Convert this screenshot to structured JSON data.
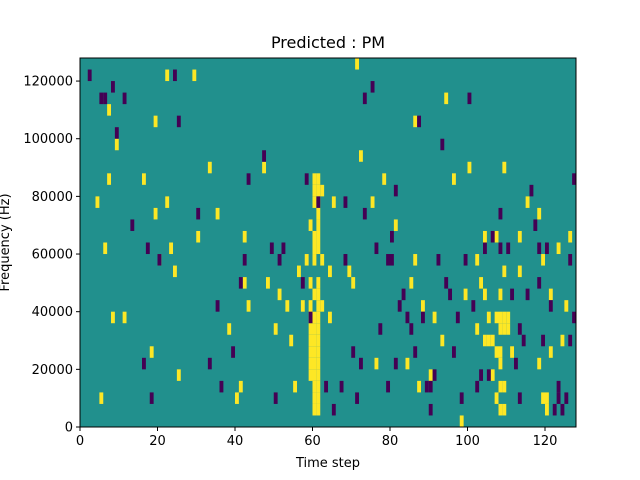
{
  "chart_data": {
    "type": "heatmap",
    "title": "Predicted : PM",
    "xlabel": "Time step",
    "ylabel": "Frequency (Hz)",
    "xlim": [
      0,
      128
    ],
    "ylim": [
      0,
      128000
    ],
    "x_ticks": [
      0,
      20,
      40,
      60,
      80,
      100,
      120
    ],
    "y_ticks": [
      0,
      20000,
      40000,
      60000,
      80000,
      100000,
      120000
    ],
    "x_tick_labels": [
      "0",
      "20",
      "40",
      "60",
      "80",
      "100",
      "120"
    ],
    "y_tick_labels": [
      "0",
      "20000",
      "40000",
      "60000",
      "80000",
      "100000",
      "120000"
    ],
    "grid": false,
    "legend": "none",
    "colors": {
      "background": "#21908d",
      "high": "#fde725",
      "low": "#440154"
    },
    "cell_height_hz": 4000,
    "high_cells": [
      [
        4,
        76000
      ],
      [
        5,
        8000
      ],
      [
        6,
        60000
      ],
      [
        7,
        84000
      ],
      [
        7,
        108000
      ],
      [
        8,
        36000
      ],
      [
        9,
        96000
      ],
      [
        11,
        36000
      ],
      [
        16,
        84000
      ],
      [
        18,
        24000
      ],
      [
        19,
        72000
      ],
      [
        19,
        104000
      ],
      [
        20,
        56000
      ],
      [
        22,
        120000
      ],
      [
        22,
        76000
      ],
      [
        23,
        60000
      ],
      [
        24,
        52000
      ],
      [
        25,
        16000
      ],
      [
        29,
        120000
      ],
      [
        30,
        64000
      ],
      [
        33,
        88000
      ],
      [
        35,
        72000
      ],
      [
        38,
        32000
      ],
      [
        40,
        8000
      ],
      [
        41,
        12000
      ],
      [
        42,
        48000
      ],
      [
        42,
        64000
      ],
      [
        43,
        40000
      ],
      [
        47,
        88000
      ],
      [
        48,
        48000
      ],
      [
        50,
        32000
      ],
      [
        51,
        44000
      ],
      [
        53,
        40000
      ],
      [
        54,
        28000
      ],
      [
        55,
        12000
      ],
      [
        56,
        52000
      ],
      [
        57,
        40000
      ],
      [
        58,
        56000
      ],
      [
        59,
        16000
      ],
      [
        59,
        20000
      ],
      [
        59,
        24000
      ],
      [
        59,
        28000
      ],
      [
        59,
        32000
      ],
      [
        59,
        36000
      ],
      [
        59,
        40000
      ],
      [
        59,
        48000
      ],
      [
        59,
        68000
      ],
      [
        60,
        4000
      ],
      [
        60,
        8000
      ],
      [
        60,
        12000
      ],
      [
        60,
        16000
      ],
      [
        60,
        20000
      ],
      [
        60,
        24000
      ],
      [
        60,
        28000
      ],
      [
        60,
        32000
      ],
      [
        60,
        36000
      ],
      [
        60,
        44000
      ],
      [
        60,
        56000
      ],
      [
        60,
        60000
      ],
      [
        60,
        64000
      ],
      [
        60,
        76000
      ],
      [
        60,
        80000
      ],
      [
        60,
        84000
      ],
      [
        61,
        4000
      ],
      [
        61,
        8000
      ],
      [
        61,
        12000
      ],
      [
        61,
        16000
      ],
      [
        61,
        20000
      ],
      [
        61,
        24000
      ],
      [
        61,
        28000
      ],
      [
        61,
        32000
      ],
      [
        61,
        36000
      ],
      [
        61,
        40000
      ],
      [
        61,
        44000
      ],
      [
        61,
        48000
      ],
      [
        61,
        60000
      ],
      [
        61,
        64000
      ],
      [
        61,
        68000
      ],
      [
        61,
        72000
      ],
      [
        61,
        76000
      ],
      [
        61,
        80000
      ],
      [
        61,
        84000
      ],
      [
        62,
        40000
      ],
      [
        62,
        56000
      ],
      [
        62,
        80000
      ],
      [
        64,
        36000
      ],
      [
        64,
        52000
      ],
      [
        65,
        76000
      ],
      [
        69,
        52000
      ],
      [
        70,
        48000
      ],
      [
        71,
        124000
      ],
      [
        72,
        92000
      ],
      [
        75,
        76000
      ],
      [
        76,
        20000
      ],
      [
        78,
        84000
      ],
      [
        81,
        68000
      ],
      [
        84,
        20000
      ],
      [
        85,
        48000
      ],
      [
        86,
        56000
      ],
      [
        86,
        104000
      ],
      [
        87,
        12000
      ],
      [
        88,
        40000
      ],
      [
        90,
        16000
      ],
      [
        91,
        36000
      ],
      [
        93,
        28000
      ],
      [
        94,
        112000
      ],
      [
        96,
        84000
      ],
      [
        98,
        0
      ],
      [
        99,
        44000
      ],
      [
        100,
        88000
      ],
      [
        102,
        32000
      ],
      [
        102,
        56000
      ],
      [
        103,
        48000
      ],
      [
        104,
        28000
      ],
      [
        104,
        44000
      ],
      [
        104,
        64000
      ],
      [
        105,
        28000
      ],
      [
        105,
        36000
      ],
      [
        106,
        16000
      ],
      [
        106,
        28000
      ],
      [
        107,
        8000
      ],
      [
        107,
        24000
      ],
      [
        107,
        36000
      ],
      [
        107,
        64000
      ],
      [
        108,
        4000
      ],
      [
        108,
        12000
      ],
      [
        108,
        20000
      ],
      [
        108,
        24000
      ],
      [
        108,
        32000
      ],
      [
        108,
        36000
      ],
      [
        108,
        44000
      ],
      [
        109,
        4000
      ],
      [
        109,
        12000
      ],
      [
        109,
        32000
      ],
      [
        109,
        36000
      ],
      [
        109,
        52000
      ],
      [
        109,
        88000
      ],
      [
        110,
        32000
      ],
      [
        110,
        36000
      ],
      [
        111,
        24000
      ],
      [
        113,
        64000
      ],
      [
        113,
        52000
      ],
      [
        115,
        76000
      ],
      [
        118,
        20000
      ],
      [
        118,
        72000
      ],
      [
        119,
        8000
      ],
      [
        119,
        56000
      ],
      [
        120,
        4000
      ],
      [
        120,
        8000
      ],
      [
        121,
        44000
      ],
      [
        121,
        24000
      ],
      [
        123,
        60000
      ],
      [
        124,
        28000
      ],
      [
        125,
        40000
      ],
      [
        126,
        64000
      ]
    ],
    "low_cells": [
      [
        2,
        120000
      ],
      [
        5,
        112000
      ],
      [
        6,
        112000
      ],
      [
        8,
        116000
      ],
      [
        9,
        100000
      ],
      [
        11,
        112000
      ],
      [
        13,
        68000
      ],
      [
        16,
        20000
      ],
      [
        17,
        60000
      ],
      [
        18,
        8000
      ],
      [
        20,
        56000
      ],
      [
        24,
        120000
      ],
      [
        25,
        104000
      ],
      [
        30,
        72000
      ],
      [
        33,
        20000
      ],
      [
        35,
        40000
      ],
      [
        36,
        12000
      ],
      [
        39,
        24000
      ],
      [
        41,
        48000
      ],
      [
        42,
        56000
      ],
      [
        43,
        84000
      ],
      [
        47,
        92000
      ],
      [
        49,
        60000
      ],
      [
        50,
        8000
      ],
      [
        51,
        56000
      ],
      [
        52,
        60000
      ],
      [
        57,
        48000
      ],
      [
        58,
        84000
      ],
      [
        59,
        36000
      ],
      [
        61,
        76000
      ],
      [
        63,
        12000
      ],
      [
        65,
        4000
      ],
      [
        67,
        12000
      ],
      [
        68,
        56000
      ],
      [
        68,
        76000
      ],
      [
        70,
        24000
      ],
      [
        71,
        8000
      ],
      [
        72,
        20000
      ],
      [
        73,
        72000
      ],
      [
        73,
        112000
      ],
      [
        75,
        116000
      ],
      [
        76,
        60000
      ],
      [
        77,
        32000
      ],
      [
        79,
        12000
      ],
      [
        79,
        56000
      ],
      [
        80,
        56000
      ],
      [
        80,
        64000
      ],
      [
        81,
        20000
      ],
      [
        81,
        80000
      ],
      [
        82,
        40000
      ],
      [
        83,
        44000
      ],
      [
        84,
        36000
      ],
      [
        85,
        32000
      ],
      [
        86,
        24000
      ],
      [
        87,
        104000
      ],
      [
        88,
        36000
      ],
      [
        89,
        12000
      ],
      [
        90,
        4000
      ],
      [
        90,
        12000
      ],
      [
        91,
        16000
      ],
      [
        92,
        56000
      ],
      [
        93,
        96000
      ],
      [
        94,
        48000
      ],
      [
        95,
        44000
      ],
      [
        96,
        24000
      ],
      [
        97,
        36000
      ],
      [
        98,
        8000
      ],
      [
        99,
        56000
      ],
      [
        100,
        112000
      ],
      [
        101,
        40000
      ],
      [
        102,
        12000
      ],
      [
        103,
        16000
      ],
      [
        104,
        60000
      ],
      [
        105,
        16000
      ],
      [
        106,
        64000
      ],
      [
        108,
        72000
      ],
      [
        108,
        60000
      ],
      [
        110,
        60000
      ],
      [
        111,
        44000
      ],
      [
        112,
        20000
      ],
      [
        113,
        8000
      ],
      [
        113,
        32000
      ],
      [
        114,
        28000
      ],
      [
        115,
        44000
      ],
      [
        116,
        80000
      ],
      [
        117,
        68000
      ],
      [
        118,
        60000
      ],
      [
        118,
        48000
      ],
      [
        119,
        28000
      ],
      [
        120,
        60000
      ],
      [
        121,
        40000
      ],
      [
        122,
        4000
      ],
      [
        123,
        8000
      ],
      [
        123,
        12000
      ],
      [
        124,
        4000
      ],
      [
        125,
        8000
      ],
      [
        126,
        56000
      ],
      [
        126,
        28000
      ],
      [
        127,
        84000
      ],
      [
        127,
        36000
      ]
    ]
  }
}
